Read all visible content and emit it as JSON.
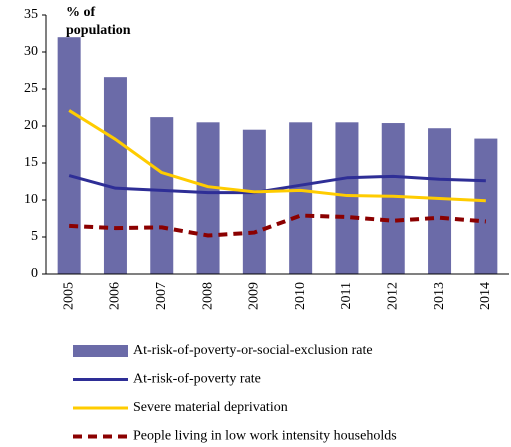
{
  "chart_data": {
    "type": "combo",
    "y_label": "% of population",
    "categories": [
      "2005",
      "2006",
      "2007",
      "2008",
      "2009",
      "2010",
      "2011",
      "2012",
      "2013",
      "2014"
    ],
    "ylim": [
      0,
      35
    ],
    "yticks": [
      0,
      5,
      10,
      15,
      20,
      25,
      30,
      35
    ],
    "series": [
      {
        "name": "At-risk-of-poverty-or-social-exclusion rate",
        "type": "bar",
        "color": "#6b6ba8",
        "values": [
          32.0,
          26.6,
          21.2,
          20.5,
          19.5,
          20.5,
          20.5,
          20.4,
          19.7,
          18.3
        ]
      },
      {
        "name": "At-risk-of-poverty rate",
        "type": "line",
        "color": "#2e2e96",
        "values": [
          13.3,
          11.6,
          11.3,
          11.0,
          11.0,
          12.0,
          13.0,
          13.2,
          12.8,
          12.6
        ]
      },
      {
        "name": "Severe material deprivation",
        "type": "line",
        "color": "#ffcc00",
        "values": [
          22.1,
          18.2,
          13.7,
          11.8,
          11.1,
          11.3,
          10.6,
          10.5,
          10.2,
          9.9
        ]
      },
      {
        "name": "People living in low work intensity households",
        "type": "dashed",
        "color": "#8b0000",
        "values": [
          6.5,
          6.2,
          6.3,
          5.2,
          5.6,
          7.9,
          7.7,
          7.2,
          7.6,
          7.1
        ]
      }
    ]
  }
}
